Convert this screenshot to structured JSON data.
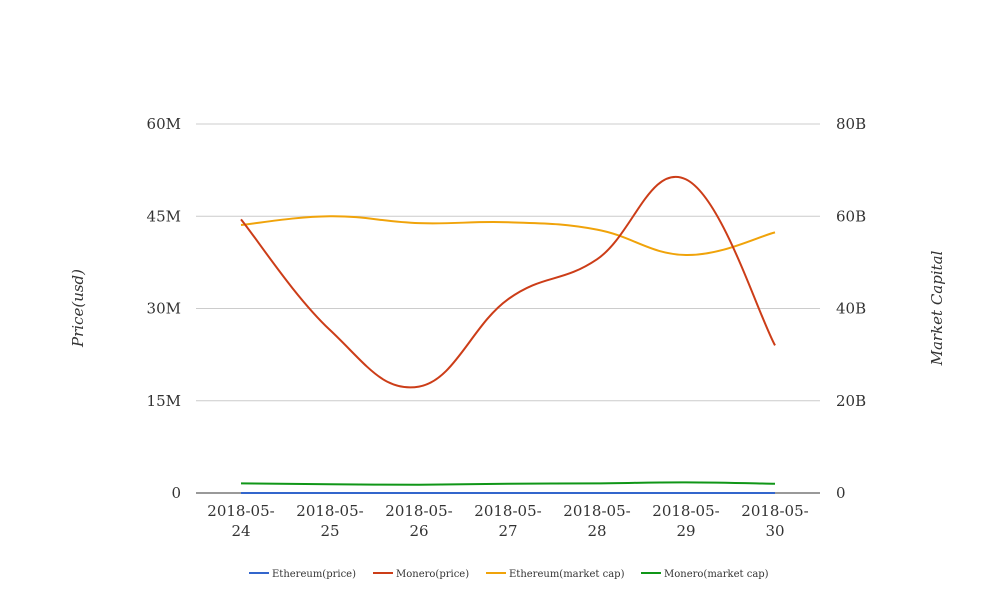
{
  "chart_data": {
    "type": "line",
    "categories": [
      "2018-05-24",
      "2018-05-25",
      "2018-05-26",
      "2018-05-27",
      "2018-05-28",
      "2018-05-29",
      "2018-05-30"
    ],
    "category_lines": [
      [
        "2018-05-",
        "24"
      ],
      [
        "2018-05-",
        "25"
      ],
      [
        "2018-05-",
        "26"
      ],
      [
        "2018-05-",
        "27"
      ],
      [
        "2018-05-",
        "28"
      ],
      [
        "2018-05-",
        "29"
      ],
      [
        "2018-05-",
        "30"
      ]
    ],
    "y_left": {
      "label": "Price(usd)",
      "range": [
        0,
        60000000
      ],
      "ticks": [
        0,
        15000000,
        30000000,
        45000000,
        60000000
      ],
      "tick_labels": [
        "0",
        "15M",
        "30M",
        "45M",
        "60M"
      ]
    },
    "y_right": {
      "label": "Market Capital",
      "range": [
        0,
        80000000000
      ],
      "ticks": [
        0,
        20000000000,
        40000000000,
        60000000000,
        80000000000
      ],
      "tick_labels": [
        "0",
        "20B",
        "40B",
        "60B",
        "80B"
      ]
    },
    "grid": true,
    "legend_position": "bottom",
    "series": [
      {
        "name": "Ethereum(price)",
        "axis": "left",
        "color": "#3366cc",
        "values": [
          600,
          590,
          580,
          570,
          580,
          560,
          570
        ]
      },
      {
        "name": "Monero(price)",
        "axis": "left",
        "color": "#cc3d18",
        "values": [
          44500000,
          26500000,
          17300000,
          31500000,
          38000000,
          51000000,
          24000000
        ]
      },
      {
        "name": "Ethereum(market cap)",
        "axis": "right",
        "color": "#f0a30a",
        "values": [
          58100000000,
          60000000000,
          58500000000,
          58700000000,
          57100000000,
          51600000000,
          56500000000
        ]
      },
      {
        "name": "Monero(market cap)",
        "axis": "right",
        "color": "#109618",
        "values": [
          2100000000,
          1900000000,
          1800000000,
          2000000000,
          2100000000,
          2300000000,
          2000000000
        ]
      }
    ]
  }
}
